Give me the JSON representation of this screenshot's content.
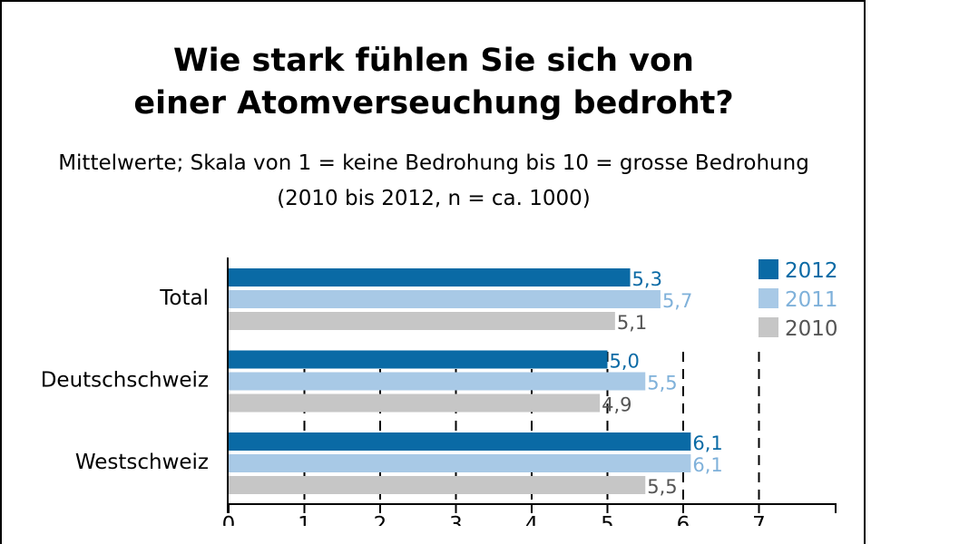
{
  "chart_data": {
    "type": "bar",
    "orientation": "horizontal",
    "title_lines": [
      "Wie stark fühlen Sie sich von",
      "einer Atomverseuchung bedroht?"
    ],
    "subtitle_lines": [
      "Mittelwerte; Skala von 1 = keine Bedrohung bis 10 = grosse Bedrohung",
      "(2010 bis 2012, n = ca. 1000)"
    ],
    "categories": [
      "Total",
      "Deutschschweiz",
      "Westschweiz"
    ],
    "series": [
      {
        "name": "2012",
        "color": "#0a6aa5",
        "values": [
          5.3,
          5.0,
          6.1
        ],
        "labels": [
          "5,3",
          "5,0",
          "6,1"
        ]
      },
      {
        "name": "2011",
        "color": "#a8c9e6",
        "values": [
          5.7,
          5.5,
          6.1
        ],
        "labels": [
          "5,7",
          "5,5",
          "6,1"
        ]
      },
      {
        "name": "2010",
        "color": "#c6c6c6",
        "values": [
          5.1,
          4.9,
          5.5
        ],
        "labels": [
          "5,1",
          "4,9",
          "5,5"
        ]
      }
    ],
    "label_colors": [
      "#0a6aa5",
      "#7fb1da",
      "#555555"
    ],
    "xlim": [
      0,
      8
    ],
    "x_ticks": [
      "0",
      "1",
      "2",
      "3",
      "4",
      "5",
      "6",
      "7"
    ],
    "grid": "dashed vertical lines",
    "legend_position": "top-right"
  }
}
